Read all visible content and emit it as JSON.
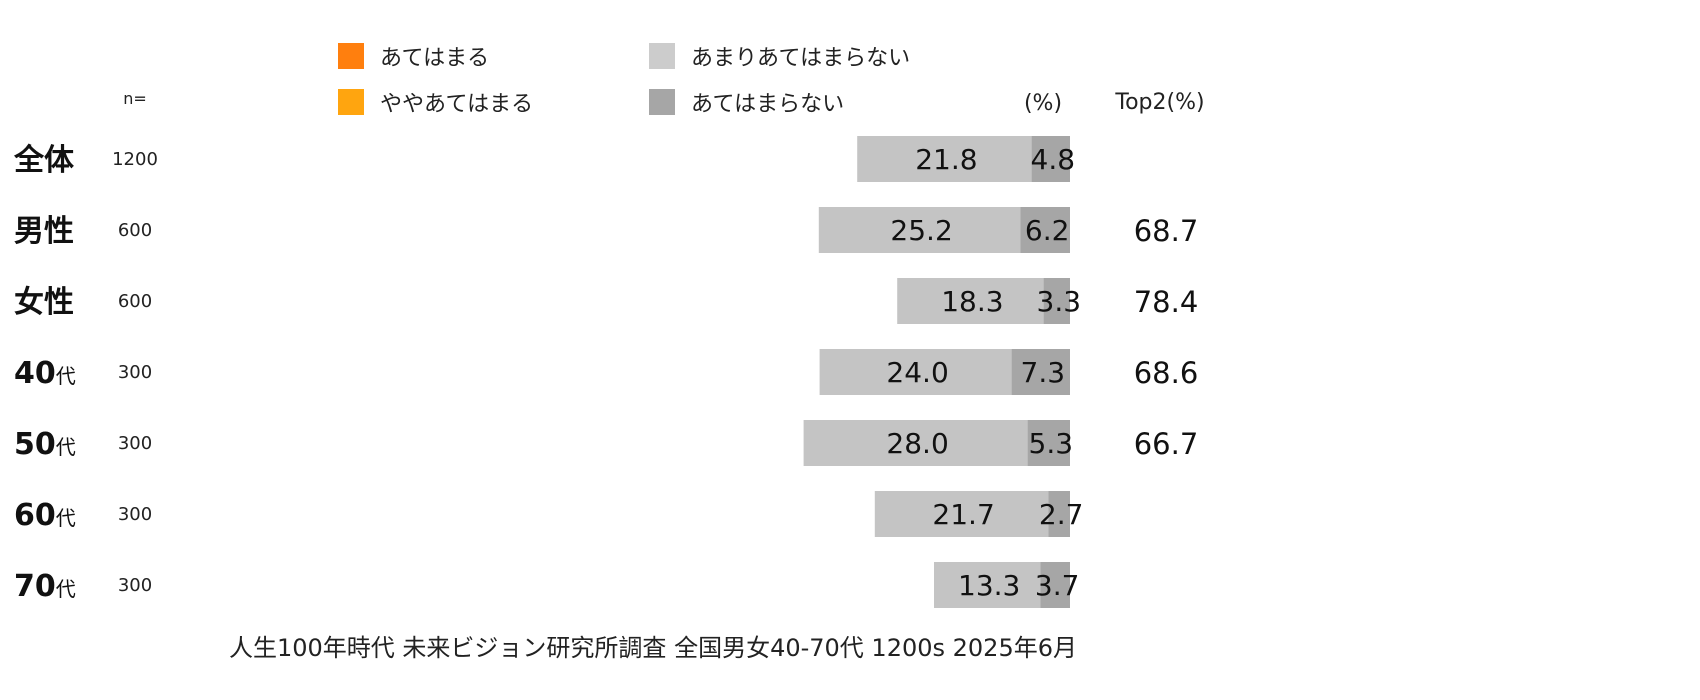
{
  "legend": {
    "items": [
      {
        "label": "あてはまる",
        "color": "#ff7f0e"
      },
      {
        "label": "ややあてはまる",
        "color": "#ffa50f"
      },
      {
        "label": "あまりあてはまらない",
        "color": "#cccccc"
      },
      {
        "label": "あてはまらない",
        "color": "#a6a6a6"
      }
    ]
  },
  "header": {
    "n_label": "n=",
    "percent_label": "(%)",
    "top2_label": "Top2(%)"
  },
  "source": "人生100年時代  未来ビジョン研究所調査  全国男女40-70代  1200s  2025年6月",
  "chart_data": {
    "type": "bar",
    "orientation": "horizontal-stacked",
    "categories": [
      "全体",
      "男性",
      "女性",
      "40代",
      "50代",
      "60代",
      "70代"
    ],
    "n": [
      "1200",
      "600",
      "600",
      "300",
      "300",
      "300",
      "300"
    ],
    "series": [
      {
        "name": "あまりあてはまらない",
        "color": "#c4c4c4",
        "values": [
          21.8,
          25.2,
          18.3,
          24.0,
          28.0,
          21.7,
          13.3
        ],
        "labels": [
          "21.8",
          "25.2",
          "18.3",
          "24.0",
          "28.0",
          "21.7",
          "13.3"
        ]
      },
      {
        "name": "あてはまらない",
        "color": "#a6a6a6",
        "values": [
          4.8,
          6.2,
          3.3,
          7.3,
          5.3,
          2.7,
          3.7
        ],
        "labels": [
          "4.8",
          "6.2",
          "3.3",
          "7.3",
          "5.3",
          "2.7",
          "3.7"
        ]
      }
    ],
    "top2": [
      "",
      "68.7",
      "78.4",
      "68.6",
      "66.7",
      "",
      ""
    ]
  }
}
